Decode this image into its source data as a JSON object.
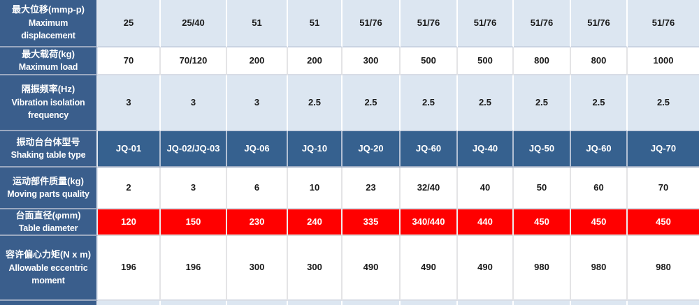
{
  "colors": {
    "header_blue": "#3A5E8C",
    "model_row_blue": "#36618F",
    "light_blue_cell": "#DCE6F1",
    "red_row": "#FF0000",
    "white_cell": "#FFFFFF",
    "header_text": "#FFFFFF",
    "data_text": "#1A1A1A"
  },
  "chart_data": {
    "type": "table",
    "title": "Shaking table specifications",
    "columns_count": 10,
    "legend_position": "none",
    "grid": true,
    "rows": [
      {
        "id": "max-displacement",
        "zh": "最大位移(mmp-p)",
        "en": "Maximum displacement",
        "style": "lightblue",
        "values": [
          "25",
          "25/40",
          "51",
          "51",
          "51/76",
          "51/76",
          "51/76",
          "51/76",
          "51/76",
          "51/76"
        ]
      },
      {
        "id": "max-load",
        "zh": "最大载荷(kg)",
        "en": "Maximum load",
        "style": "white",
        "values": [
          "70",
          "70/120",
          "200",
          "200",
          "300",
          "500",
          "500",
          "800",
          "800",
          "1000"
        ]
      },
      {
        "id": "vibration-isolation-frequency",
        "zh": "隔振频率(Hz)",
        "en": "Vibration isolation frequency",
        "style": "lightblue",
        "values": [
          "3",
          "3",
          "3",
          "2.5",
          "2.5",
          "2.5",
          "2.5",
          "2.5",
          "2.5",
          "2.5"
        ]
      },
      {
        "id": "shaking-table-type",
        "zh": "振动台台体型号",
        "en": "Shaking table type",
        "style": "blue",
        "values": [
          "JQ-01",
          "JQ-02/JQ-03",
          "JQ-06",
          "JQ-10",
          "JQ-20",
          "JQ-60",
          "JQ-40",
          "JQ-50",
          "JQ-60",
          "JQ-70"
        ]
      },
      {
        "id": "moving-parts-quality",
        "zh": "运动部件质量(kg)",
        "en": "Moving parts quality",
        "style": "white",
        "values": [
          "2",
          "3",
          "6",
          "10",
          "23",
          "32/40",
          "40",
          "50",
          "60",
          "70"
        ]
      },
      {
        "id": "table-diameter",
        "zh": "台面直径(φmm)",
        "en": "Table diameter",
        "style": "red",
        "values": [
          "120",
          "150",
          "230",
          "240",
          "335",
          "340/440",
          "440",
          "450",
          "450",
          "450"
        ]
      },
      {
        "id": "allowable-eccentric-moment",
        "zh": "容许偏心力矩(N x m)",
        "en": "Allowable eccentric moment",
        "style": "white",
        "values": [
          "196",
          "196",
          "300",
          "300",
          "490",
          "490",
          "490",
          "980",
          "980",
          "980"
        ]
      },
      {
        "id": "partial-next-row",
        "zh": "",
        "en": "",
        "style": "lightblue",
        "values": [
          "",
          "",
          "",
          "",
          "",
          "",
          "",
          "",
          "",
          ""
        ]
      }
    ]
  }
}
